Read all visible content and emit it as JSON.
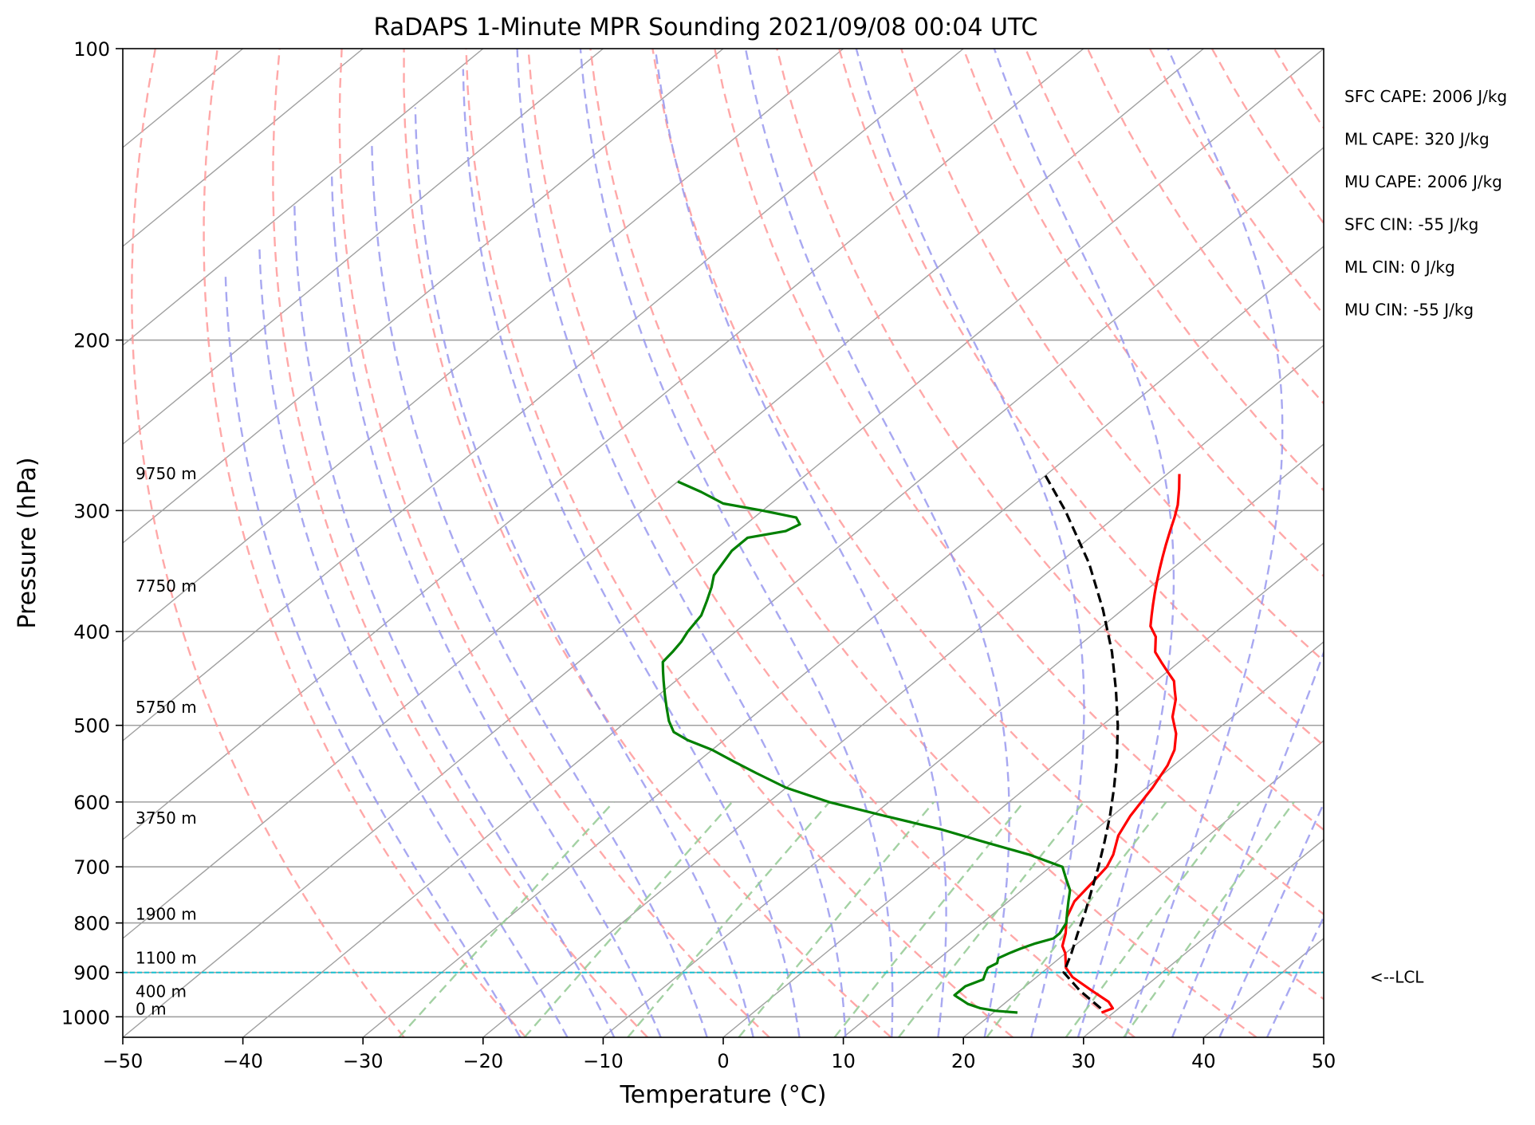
{
  "chart_data": {
    "type": "line",
    "title": "RaDAPS 1-Minute MPR Sounding 2021/09/08 00:04 UTC",
    "xlabel": "Temperature (°C)",
    "ylabel": "Pressure (hPa)",
    "xlim": [
      -50,
      50
    ],
    "ylim": [
      1050,
      100
    ],
    "y_scale": "log",
    "x_ticks": [
      "−50",
      "−40",
      "−30",
      "−20",
      "−10",
      "0",
      "10",
      "20",
      "30",
      "40",
      "50"
    ],
    "y_ticks": [
      100,
      200,
      300,
      400,
      500,
      600,
      700,
      800,
      900,
      1000
    ],
    "grid": true,
    "skew": true,
    "background_lines": [
      "isotherms",
      "dry-adiabats",
      "moist-adiabats",
      "mixing-ratio-lines"
    ],
    "series": [
      {
        "role": "temperature",
        "color": "#ff0000",
        "points": [
          [
            29.0,
            990
          ],
          [
            29.5,
            980
          ],
          [
            28.5,
            965
          ],
          [
            26.0,
            940
          ],
          [
            23.0,
            910
          ],
          [
            21.5,
            890
          ],
          [
            20.5,
            870
          ],
          [
            20.0,
            860
          ],
          [
            19.0,
            845
          ],
          [
            18.0,
            820
          ],
          [
            17.0,
            800
          ],
          [
            16.5,
            790
          ],
          [
            15.5,
            760
          ],
          [
            15.0,
            720
          ],
          [
            14.7,
            700
          ],
          [
            14.0,
            680
          ],
          [
            12.5,
            650
          ],
          [
            11.5,
            620
          ],
          [
            10.5,
            580
          ],
          [
            9.5,
            550
          ],
          [
            8.5,
            530
          ],
          [
            7.0,
            510
          ],
          [
            5.0,
            490
          ],
          [
            3.5,
            470
          ],
          [
            2.5,
            460
          ],
          [
            1.5,
            450
          ],
          [
            0.0,
            440
          ],
          [
            -1.5,
            430
          ],
          [
            -3.0,
            420
          ],
          [
            -4.5,
            405
          ],
          [
            -6.0,
            395
          ],
          [
            -7.0,
            385
          ],
          [
            -8.0,
            375
          ],
          [
            -9.0,
            365
          ],
          [
            -10.0,
            355
          ],
          [
            -11.0,
            345
          ],
          [
            -12.0,
            335
          ],
          [
            -13.0,
            325
          ],
          [
            -14.0,
            315
          ],
          [
            -15.0,
            305
          ],
          [
            -16.0,
            296
          ],
          [
            -17.5,
            285
          ],
          [
            -19.0,
            275
          ]
        ]
      },
      {
        "role": "dewpoint",
        "color": "#008000",
        "points": [
          [
            22.0,
            990
          ],
          [
            20.0,
            986
          ],
          [
            18.5,
            980
          ],
          [
            17.0,
            970
          ],
          [
            16.0,
            960
          ],
          [
            15.5,
            955
          ],
          [
            15.0,
            950
          ],
          [
            15.0,
            940
          ],
          [
            15.0,
            930
          ],
          [
            15.8,
            915
          ],
          [
            15.3,
            900
          ],
          [
            15.0,
            890
          ],
          [
            15.3,
            880
          ],
          [
            14.9,
            870
          ],
          [
            15.3,
            860
          ],
          [
            15.8,
            850
          ],
          [
            16.5,
            840
          ],
          [
            17.5,
            830
          ],
          [
            17.5,
            820
          ],
          [
            17.0,
            800
          ],
          [
            16.0,
            780
          ],
          [
            15.0,
            760
          ],
          [
            14.0,
            740
          ],
          [
            12.5,
            720
          ],
          [
            11.0,
            700
          ],
          [
            7.0,
            680
          ],
          [
            2.0,
            660
          ],
          [
            -3.0,
            640
          ],
          [
            -9.0,
            620
          ],
          [
            -15.0,
            600
          ],
          [
            -20.0,
            580
          ],
          [
            -24.0,
            560
          ],
          [
            -27.0,
            545
          ],
          [
            -30.0,
            530
          ],
          [
            -33.0,
            518
          ],
          [
            -35.0,
            508
          ],
          [
            -36.5,
            495
          ],
          [
            -38.0,
            480
          ],
          [
            -39.5,
            465
          ],
          [
            -41.0,
            450
          ],
          [
            -42.0,
            440
          ],
          [
            -43.0,
            430
          ],
          [
            -43.2,
            420
          ],
          [
            -43.5,
            410
          ],
          [
            -44.0,
            400
          ],
          [
            -44.5,
            385
          ],
          [
            -45.5,
            372
          ],
          [
            -46.5,
            360
          ],
          [
            -47.5,
            350
          ],
          [
            -48.0,
            340
          ],
          [
            -48.5,
            330
          ],
          [
            -48.5,
            320
          ],
          [
            -46.0,
            315
          ],
          [
            -45.5,
            310
          ],
          [
            -46.5,
            305
          ],
          [
            -50.0,
            300
          ],
          [
            -54.0,
            295
          ],
          [
            -57.0,
            287
          ],
          [
            -60.0,
            280
          ]
        ]
      },
      {
        "role": "parcel",
        "color": "#000000",
        "dashed": true,
        "points": [
          [
            28.5,
            980
          ],
          [
            25.0,
            940
          ],
          [
            21.8,
            900
          ],
          [
            20.5,
            860
          ],
          [
            19.0,
            820
          ],
          [
            17.5,
            780
          ],
          [
            15.8,
            740
          ],
          [
            14.0,
            700
          ],
          [
            12.0,
            660
          ],
          [
            9.8,
            620
          ],
          [
            7.3,
            580
          ],
          [
            4.5,
            540
          ],
          [
            1.3,
            500
          ],
          [
            -2.4,
            460
          ],
          [
            -6.6,
            420
          ],
          [
            -11.6,
            380
          ],
          [
            -17.5,
            340
          ],
          [
            -24.8,
            300
          ],
          [
            -30.0,
            276
          ]
        ]
      }
    ],
    "lcl_pressure": 900,
    "lcl_label": "<--LCL",
    "height_labels": [
      {
        "text": "9750 m",
        "p": 280
      },
      {
        "text": "7750 m",
        "p": 366
      },
      {
        "text": "5750 m",
        "p": 488
      },
      {
        "text": "3750 m",
        "p": 635
      },
      {
        "text": "1900 m",
        "p": 798
      },
      {
        "text": "1100 m",
        "p": 886
      },
      {
        "text": "400 m",
        "p": 960
      },
      {
        "text": "0 m",
        "p": 1000
      }
    ],
    "annotations": [
      "SFC CAPE: 2006 J/kg",
      "ML CAPE: 320 J/kg",
      "MU CAPE: 2006 J/kg",
      "SFC CIN: -55 J/kg",
      "ML CIN: 0 J/kg",
      "MU CIN: -55 J/kg"
    ],
    "colors": {
      "isotherm": "#a0a0a0",
      "dry_adiabat": "#ff9999",
      "moist_adiabat": "#9999ee",
      "mixing_ratio": "#99cc99",
      "lcl_line": "#17becf"
    }
  }
}
